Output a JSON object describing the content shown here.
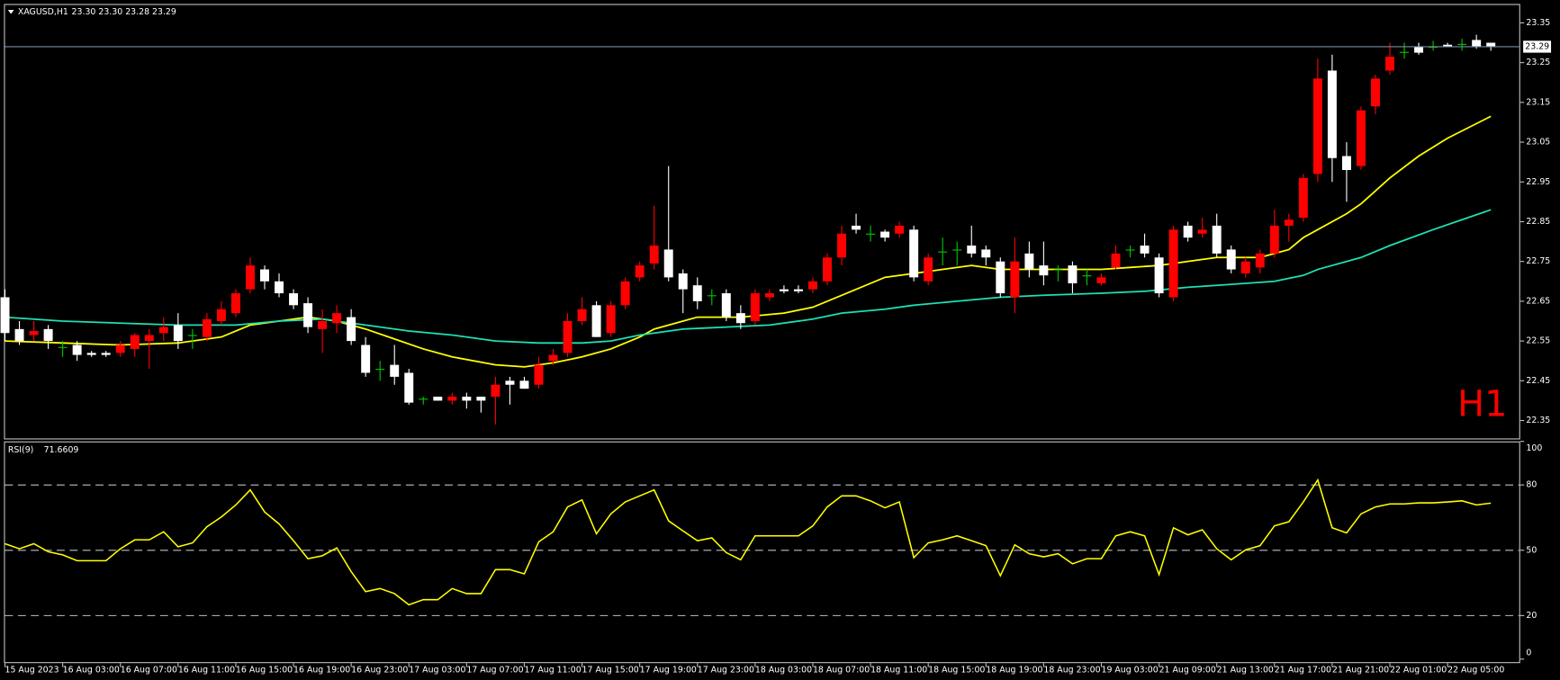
{
  "chart_data": [
    {
      "type": "candlestick",
      "title": "XAGUSD,H1",
      "ohlc_text": "23.30 23.30 23.28 23.29",
      "watermark": "H1",
      "categories": [
        "15 Aug 2023",
        null,
        null,
        null,
        "16 Aug 03:00",
        null,
        null,
        null,
        "16 Aug 07:00",
        null,
        null,
        null,
        "16 Aug 11:00",
        null,
        null,
        null,
        "16 Aug 15:00",
        null,
        null,
        null,
        "16 Aug 19:00",
        null,
        null,
        null,
        "16 Aug 23:00",
        null,
        null,
        null,
        "17 Aug 03:00",
        null,
        null,
        null,
        "17 Aug 07:00",
        null,
        null,
        null,
        "17 Aug 11:00",
        null,
        null,
        null,
        "17 Aug 15:00",
        null,
        null,
        null,
        "17 Aug 19:00",
        null,
        null,
        null,
        "17 Aug 23:00",
        null,
        null,
        null,
        "18 Aug 03:00",
        null,
        null,
        null,
        "18 Aug 07:00",
        null,
        null,
        null,
        "18 Aug 11:00",
        null,
        null,
        null,
        "18 Aug 15:00",
        null,
        null,
        null,
        "18 Aug 19:00",
        null,
        null,
        null,
        "18 Aug 23:00",
        null,
        null,
        null,
        "19 Aug 03:00",
        null,
        null,
        null,
        "21 Aug 09:00",
        null,
        null,
        null,
        "21 Aug 13:00",
        null,
        null,
        null,
        "21 Aug 17:00",
        null,
        null,
        null,
        "21 Aug 21:00",
        null,
        null,
        null,
        "22 Aug 01:00",
        null,
        null,
        null,
        "22 Aug 05:00",
        null,
        null,
        null
      ],
      "open": [
        22.66,
        22.58,
        22.565,
        22.58,
        22.535,
        22.54,
        22.52,
        22.52,
        22.52,
        22.53,
        22.55,
        22.57,
        22.59,
        22.565,
        22.56,
        22.6,
        22.62,
        22.68,
        22.73,
        22.7,
        22.67,
        22.645,
        22.58,
        22.595,
        22.61,
        22.54,
        22.48,
        22.49,
        22.47,
        22.405,
        22.41,
        22.4,
        22.41,
        22.41,
        22.41,
        22.45,
        22.45,
        22.44,
        22.5,
        22.52,
        22.6,
        22.64,
        22.57,
        22.64,
        22.71,
        22.745,
        22.78,
        22.72,
        22.69,
        22.665,
        22.67,
        22.62,
        22.6,
        22.66,
        22.68,
        22.68,
        22.68,
        22.7,
        22.76,
        22.84,
        22.82,
        22.825,
        22.82,
        22.83,
        22.7,
        22.775,
        22.78,
        22.79,
        22.78,
        22.75,
        22.66,
        22.77,
        22.74,
        22.73,
        22.74,
        22.715,
        22.695,
        22.735,
        22.78,
        22.79,
        22.76,
        22.66,
        22.84,
        22.82,
        22.84,
        22.78,
        22.72,
        22.735,
        22.77,
        22.84,
        22.86,
        22.97,
        23.23,
        23.015,
        22.99,
        23.14,
        23.23,
        23.277,
        23.29,
        23.29,
        23.295,
        23.297,
        23.307,
        23.3
      ],
      "high": [
        22.68,
        22.6,
        22.6,
        22.59,
        22.55,
        22.55,
        22.525,
        22.525,
        22.55,
        22.57,
        22.58,
        22.61,
        22.62,
        22.58,
        22.62,
        22.65,
        22.68,
        22.76,
        22.74,
        22.72,
        22.68,
        22.66,
        22.63,
        22.64,
        22.63,
        22.56,
        22.5,
        22.54,
        22.48,
        22.41,
        22.41,
        22.42,
        22.42,
        22.41,
        22.46,
        22.46,
        22.46,
        22.51,
        22.53,
        22.62,
        22.66,
        22.65,
        22.65,
        22.71,
        22.75,
        22.89,
        22.99,
        22.73,
        22.71,
        22.68,
        22.68,
        22.64,
        22.68,
        22.68,
        22.69,
        22.69,
        22.71,
        22.77,
        22.84,
        22.87,
        22.84,
        22.83,
        22.85,
        22.84,
        22.77,
        22.81,
        22.8,
        22.84,
        22.79,
        22.76,
        22.81,
        22.8,
        22.8,
        22.74,
        22.75,
        22.73,
        22.72,
        22.79,
        22.79,
        22.82,
        22.77,
        22.84,
        22.85,
        22.86,
        22.87,
        22.79,
        22.76,
        22.78,
        22.88,
        22.87,
        22.97,
        23.26,
        23.27,
        23.05,
        23.14,
        23.22,
        23.3,
        23.3,
        23.3,
        23.305,
        23.3,
        23.31,
        23.32,
        23.3
      ],
      "low": [
        22.55,
        22.54,
        22.55,
        22.53,
        22.51,
        22.5,
        22.51,
        22.51,
        22.51,
        22.51,
        22.48,
        22.55,
        22.53,
        22.53,
        22.55,
        22.59,
        22.61,
        22.67,
        22.68,
        22.66,
        22.63,
        22.57,
        22.52,
        22.57,
        22.54,
        22.46,
        22.45,
        22.44,
        22.39,
        22.39,
        22.4,
        22.39,
        22.38,
        22.37,
        22.34,
        22.39,
        22.43,
        22.43,
        22.49,
        22.51,
        22.59,
        22.56,
        22.56,
        22.63,
        22.7,
        22.73,
        22.7,
        22.62,
        22.63,
        22.64,
        22.6,
        22.58,
        22.59,
        22.65,
        22.67,
        22.67,
        22.67,
        22.69,
        22.74,
        22.82,
        22.8,
        22.8,
        22.81,
        22.7,
        22.69,
        22.74,
        22.74,
        22.76,
        22.74,
        22.66,
        22.62,
        22.71,
        22.69,
        22.7,
        22.67,
        22.69,
        22.69,
        22.73,
        22.76,
        22.76,
        22.66,
        22.65,
        22.8,
        22.81,
        22.76,
        22.72,
        22.71,
        22.72,
        22.76,
        22.8,
        22.85,
        22.95,
        22.95,
        22.9,
        22.98,
        23.12,
        23.22,
        23.26,
        23.27,
        23.28,
        23.29,
        23.28,
        23.285,
        23.28
      ],
      "close": [
        22.57,
        22.55,
        22.575,
        22.55,
        22.535,
        22.515,
        22.515,
        22.515,
        22.54,
        22.565,
        22.565,
        22.585,
        22.55,
        22.565,
        22.605,
        22.63,
        22.67,
        22.74,
        22.7,
        22.67,
        22.64,
        22.585,
        22.6,
        22.62,
        22.55,
        22.47,
        22.48,
        22.46,
        22.395,
        22.405,
        22.4,
        22.41,
        22.4,
        22.4,
        22.44,
        22.44,
        22.43,
        22.49,
        22.515,
        22.6,
        22.63,
        22.56,
        22.64,
        22.7,
        22.74,
        22.79,
        22.71,
        22.68,
        22.65,
        22.665,
        22.61,
        22.595,
        22.67,
        22.67,
        22.675,
        22.675,
        22.7,
        22.76,
        22.82,
        22.83,
        22.82,
        22.81,
        22.84,
        22.71,
        22.76,
        22.775,
        22.78,
        22.77,
        22.76,
        22.67,
        22.75,
        22.73,
        22.715,
        22.73,
        22.695,
        22.715,
        22.71,
        22.77,
        22.78,
        22.77,
        22.67,
        22.83,
        22.81,
        22.83,
        22.77,
        22.73,
        22.75,
        22.77,
        22.84,
        22.855,
        22.96,
        23.21,
        23.01,
        22.98,
        23.13,
        23.21,
        23.265,
        23.277,
        23.275,
        23.29,
        23.29,
        23.297,
        23.29,
        23.29
      ],
      "up_color": "#ff0000",
      "down_color": "#ffffff",
      "doji_color": "#00c800",
      "overlays": [
        {
          "color": "#ffff00",
          "x": [
            0,
            4,
            8,
            12,
            15,
            17,
            19,
            21,
            23,
            25,
            27,
            29,
            31,
            34,
            36,
            38,
            40,
            42,
            44,
            45,
            48,
            51,
            54,
            56,
            57,
            59,
            61,
            63,
            65,
            67,
            69,
            71,
            73,
            76,
            78,
            80,
            82,
            84,
            87,
            89,
            90,
            91,
            93,
            94,
            96,
            98,
            100,
            103
          ],
          "values": [
            22.55,
            22.545,
            22.54,
            22.545,
            22.56,
            22.59,
            22.6,
            22.61,
            22.6,
            22.58,
            22.555,
            22.53,
            22.51,
            22.49,
            22.485,
            22.495,
            22.51,
            22.53,
            22.56,
            22.58,
            22.61,
            22.61,
            22.62,
            22.635,
            22.65,
            22.68,
            22.71,
            22.72,
            22.73,
            22.74,
            22.73,
            22.73,
            22.73,
            22.73,
            22.735,
            22.74,
            22.75,
            22.76,
            22.76,
            22.78,
            22.81,
            22.83,
            22.87,
            22.895,
            22.96,
            23.015,
            23.06,
            23.115
          ]
        },
        {
          "color": "#1ee0b4",
          "x": [
            0,
            4,
            8,
            12,
            16,
            19,
            22,
            25,
            28,
            31,
            34,
            37,
            40,
            42,
            44,
            47,
            50,
            53,
            56,
            58,
            61,
            63,
            66,
            69,
            72,
            76,
            79,
            82,
            84,
            88,
            90,
            91,
            94,
            96,
            99,
            101,
            103
          ],
          "values": [
            22.61,
            22.6,
            22.595,
            22.59,
            22.59,
            22.6,
            22.605,
            22.59,
            22.575,
            22.565,
            22.55,
            22.545,
            22.545,
            22.55,
            22.565,
            22.58,
            22.585,
            22.59,
            22.605,
            22.62,
            22.63,
            22.64,
            22.65,
            22.66,
            22.665,
            22.67,
            22.675,
            22.685,
            22.69,
            22.7,
            22.715,
            22.73,
            22.76,
            22.79,
            22.83,
            22.855,
            22.88
          ]
        }
      ],
      "price_line": 23.29,
      "ylim": [
        22.3075,
        23.395
      ],
      "yticks": [
        23.35,
        23.25,
        23.15,
        23.05,
        22.95,
        22.85,
        22.75,
        22.65,
        22.55,
        22.45,
        22.35
      ]
    },
    {
      "type": "line",
      "title": "RSI(9)",
      "series": [
        {
          "color": "#ffff00",
          "values": [
            53.0,
            50.7,
            53.0,
            49.3,
            47.9,
            45.2,
            45.2,
            45.2,
            50.7,
            54.8,
            54.8,
            58.5,
            51.6,
            53.4,
            60.8,
            65.3,
            70.8,
            77.7,
            67.6,
            62.1,
            54.4,
            46.1,
            47.5,
            51.1,
            40.2,
            31.0,
            32.4,
            30.1,
            25.0,
            27.3,
            27.3,
            32.4,
            30.1,
            30.1,
            41.1,
            41.1,
            39.2,
            53.9,
            58.5,
            69.9,
            73.1,
            57.6,
            66.7,
            72.2,
            75.0,
            77.7,
            63.5,
            58.9,
            54.4,
            55.7,
            48.9,
            45.6,
            56.6,
            56.6,
            56.6,
            56.6,
            61.2,
            69.9,
            75.0,
            75.0,
            72.7,
            69.5,
            72.2,
            46.6,
            53.4,
            54.8,
            56.6,
            54.4,
            52.1,
            38.3,
            52.5,
            48.4,
            47.0,
            48.4,
            43.8,
            46.1,
            46.1,
            56.6,
            58.5,
            56.6,
            38.8,
            60.3,
            57.1,
            59.4,
            50.7,
            45.6,
            50.2,
            52.1,
            61.2,
            63.1,
            72.2,
            82.3,
            60.3,
            58.0,
            66.7,
            69.9,
            71.3,
            71.3,
            71.8,
            71.8,
            72.2,
            72.7,
            70.8,
            71.6609
          ]
        }
      ],
      "ylim": [
        0,
        100
      ],
      "yticks": [
        0,
        20,
        50,
        80,
        100
      ],
      "levels": [
        20,
        50,
        80
      ]
    }
  ]
}
